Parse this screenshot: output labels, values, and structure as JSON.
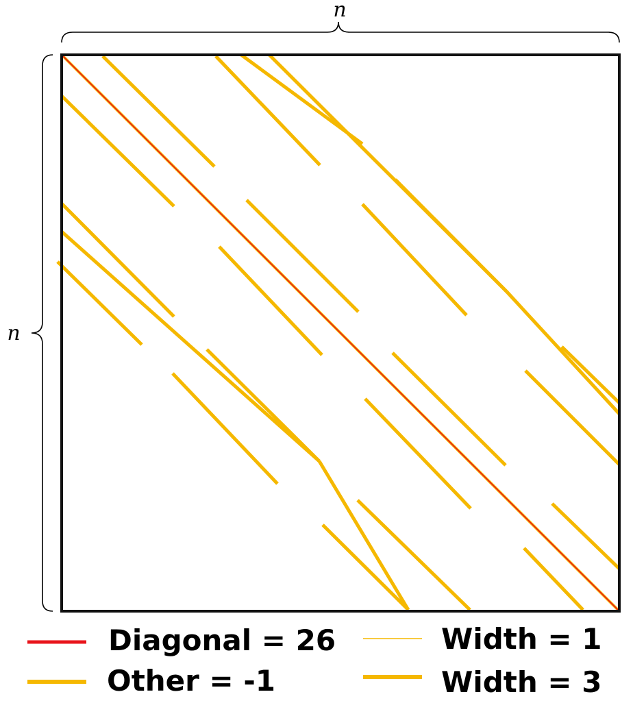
{
  "labels": {
    "top_dimension": "n",
    "left_dimension": "n"
  },
  "colors": {
    "diagonal": "#e8141b",
    "other": "#f5b800",
    "frame": "#111111"
  },
  "legend": {
    "diagonal_label": "Diagonal = 26",
    "other_label": "Other = -1",
    "width1_label": "Width = 1",
    "width3_label": "Width = 3"
  }
}
